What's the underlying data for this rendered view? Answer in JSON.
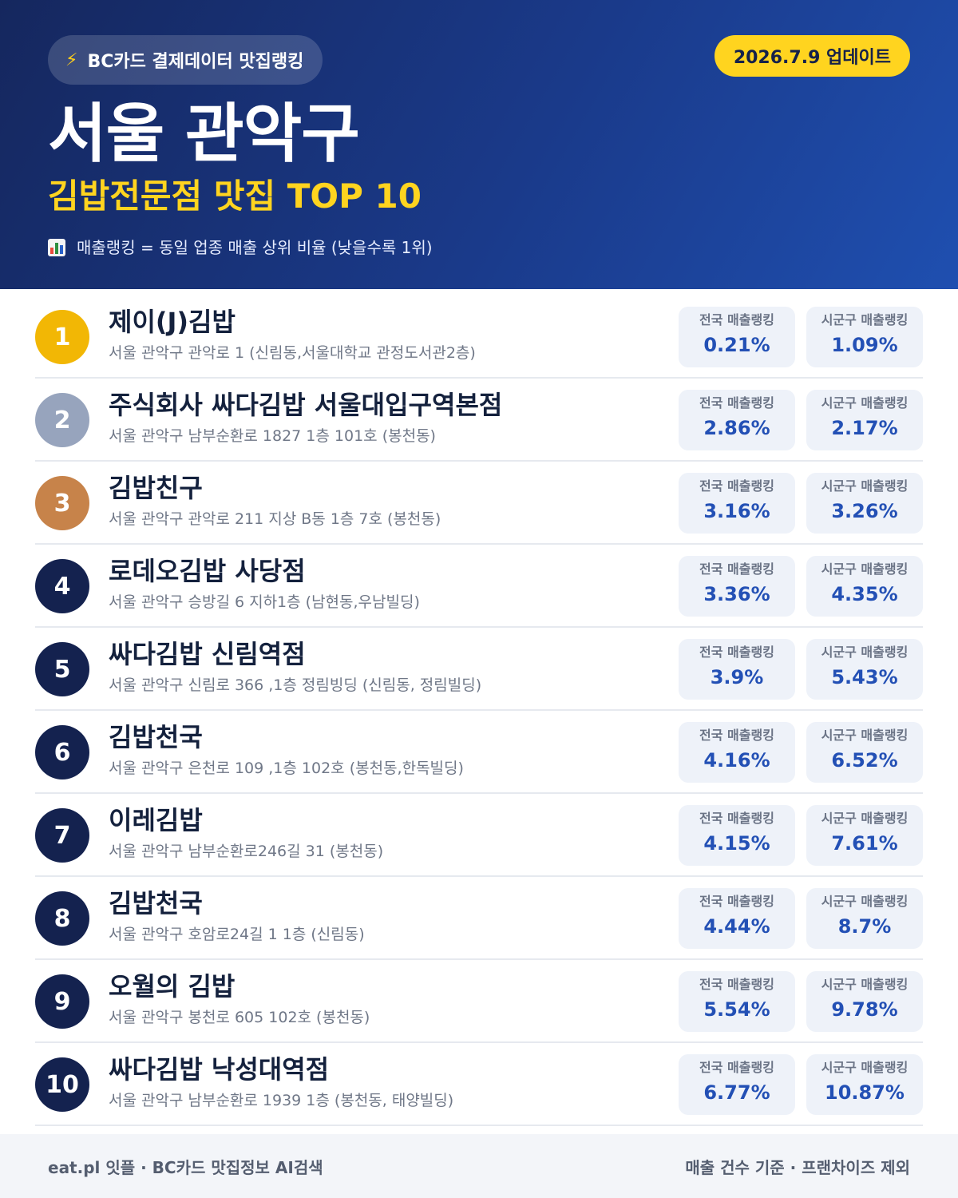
{
  "header": {
    "badge_icon": "lightning-icon",
    "badge_label": "BC카드 결제데이터 맛집랭킹",
    "update_label": "2026.7.9 업데이트",
    "region": "서울 관악구",
    "subtitle": "김밥전문점 맛집 TOP 10",
    "note_icon": "bar-chart-icon",
    "note": "매출랭킹 = 동일 업종 매출 상위 비율 (낮을수록 1위)",
    "colors": {
      "background_start": "#15275e",
      "background_end": "#1f4fb0",
      "accent": "#ffd41f"
    }
  },
  "stat_labels": {
    "national": "전국 매출랭킹",
    "local": "시군구 매출랭킹"
  },
  "colors": {
    "rank_gold": "#f2b705",
    "rank_silver": "#97a4bd",
    "rank_bronze": "#c7834a",
    "rank_default": "#14224f",
    "value": "#2350b5"
  },
  "items": [
    {
      "rank": "1",
      "name": "제이(J)김밥",
      "address": "서울 관악구 관악로 1 (신림동,서울대학교 관정도서관2층)",
      "national": "0.21%",
      "local": "1.09%"
    },
    {
      "rank": "2",
      "name": "주식회사 싸다김밥 서울대입구역본점",
      "address": "서울 관악구 남부순환로 1827 1층 101호 (봉천동)",
      "national": "2.86%",
      "local": "2.17%"
    },
    {
      "rank": "3",
      "name": "김밥친구",
      "address": "서울 관악구 관악로 211 지상 B동 1층 7호 (봉천동)",
      "national": "3.16%",
      "local": "3.26%"
    },
    {
      "rank": "4",
      "name": "로데오김밥 사당점",
      "address": "서울 관악구 승방길 6 지하1층 (남현동,우남빌딩)",
      "national": "3.36%",
      "local": "4.35%"
    },
    {
      "rank": "5",
      "name": "싸다김밥 신림역점",
      "address": "서울 관악구 신림로 366 ,1층 정림빙딩 (신림동, 정림빌딩)",
      "national": "3.9%",
      "local": "5.43%"
    },
    {
      "rank": "6",
      "name": "김밥천국",
      "address": "서울 관악구 은천로 109 ,1층 102호 (봉천동,한독빌딩)",
      "national": "4.16%",
      "local": "6.52%"
    },
    {
      "rank": "7",
      "name": "이레김밥",
      "address": "서울 관악구 남부순환로246길 31 (봉천동)",
      "national": "4.15%",
      "local": "7.61%"
    },
    {
      "rank": "8",
      "name": "김밥천국",
      "address": "서울 관악구 호암로24길 1 1층 (신림동)",
      "national": "4.44%",
      "local": "8.7%"
    },
    {
      "rank": "9",
      "name": "오월의 김밥",
      "address": "서울 관악구 봉천로 605 102호 (봉천동)",
      "national": "5.54%",
      "local": "9.78%"
    },
    {
      "rank": "10",
      "name": "싸다김밥 낙성대역점",
      "address": "서울 관악구 남부순환로 1939 1층 (봉천동, 태양빌딩)",
      "national": "6.77%",
      "local": "10.87%"
    }
  ],
  "footer": {
    "left": "eat.pl 잇플 · BC카드 맛집정보 AI검색",
    "right": "매출 건수 기준 · 프랜차이즈 제외"
  }
}
